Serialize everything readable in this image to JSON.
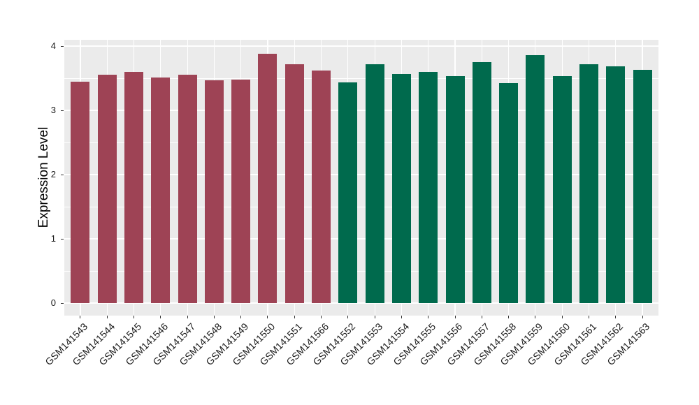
{
  "chart_data": {
    "type": "bar",
    "title": "",
    "xlabel": "",
    "ylabel": "Expression Level",
    "y_ticks": [
      0,
      1,
      2,
      3,
      4
    ],
    "y_minor_ticks": [
      0.5,
      1.5,
      2.5,
      3.5
    ],
    "ylim": [
      -0.2,
      4.1
    ],
    "legend": "none",
    "grid": "white major+minor horizontal lines, white vertical line per category",
    "panel_background": "#EBEBEB",
    "gridline_color": "#FFFFFF",
    "axis_text_color": "#1A1A1A",
    "tick_mark_color": "#333333",
    "group_colors": {
      "maroon": "#9E4355",
      "green": "#006A4D"
    },
    "bars": [
      {
        "label": "GSM141543",
        "value": 3.45,
        "group": "maroon"
      },
      {
        "label": "GSM141544",
        "value": 3.55,
        "group": "maroon"
      },
      {
        "label": "GSM141545",
        "value": 3.6,
        "group": "maroon"
      },
      {
        "label": "GSM141546",
        "value": 3.51,
        "group": "maroon"
      },
      {
        "label": "GSM141547",
        "value": 3.55,
        "group": "maroon"
      },
      {
        "label": "GSM141548",
        "value": 3.47,
        "group": "maroon"
      },
      {
        "label": "GSM141549",
        "value": 3.48,
        "group": "maroon"
      },
      {
        "label": "GSM141550",
        "value": 3.88,
        "group": "maroon"
      },
      {
        "label": "GSM141551",
        "value": 3.72,
        "group": "maroon"
      },
      {
        "label": "GSM141566",
        "value": 3.62,
        "group": "maroon"
      },
      {
        "label": "GSM141552",
        "value": 3.43,
        "group": "green"
      },
      {
        "label": "GSM141553",
        "value": 3.72,
        "group": "green"
      },
      {
        "label": "GSM141554",
        "value": 3.56,
        "group": "green"
      },
      {
        "label": "GSM141555",
        "value": 3.6,
        "group": "green"
      },
      {
        "label": "GSM141556",
        "value": 3.53,
        "group": "green"
      },
      {
        "label": "GSM141557",
        "value": 3.75,
        "group": "green"
      },
      {
        "label": "GSM141558",
        "value": 3.42,
        "group": "green"
      },
      {
        "label": "GSM141559",
        "value": 3.86,
        "group": "green"
      },
      {
        "label": "GSM141560",
        "value": 3.53,
        "group": "green"
      },
      {
        "label": "GSM141561",
        "value": 3.72,
        "group": "green"
      },
      {
        "label": "GSM141562",
        "value": 3.68,
        "group": "green"
      },
      {
        "label": "GSM141563",
        "value": 3.63,
        "group": "green"
      }
    ]
  }
}
